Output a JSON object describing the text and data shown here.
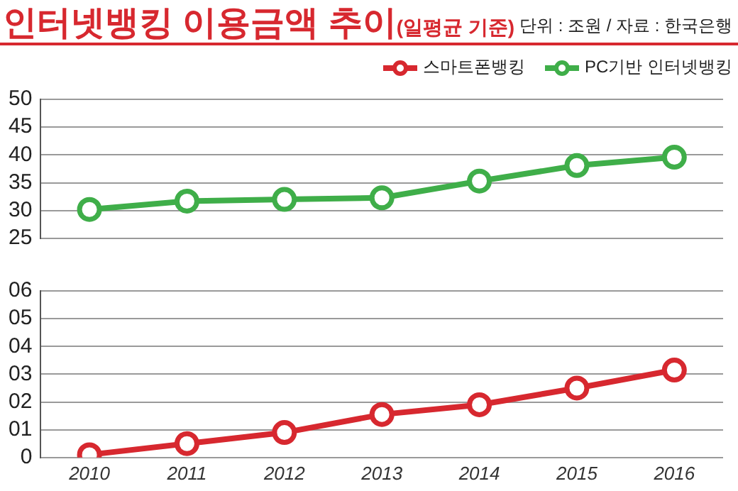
{
  "chart_data": [
    {
      "type": "line",
      "title": "인터넷뱅킹 이용금액 추이",
      "subtitle": "(일평균 기준)",
      "annotations": [
        "단위 : 조원 / 자료 : 한국은행"
      ],
      "categories": [
        "2010",
        "2011",
        "2012",
        "2013",
        "2014",
        "2015",
        "2016"
      ],
      "series": [
        {
          "name": "PC기반 인터넷뱅킹",
          "color": "#3fae49",
          "values": [
            30.2,
            31.7,
            32.0,
            32.3,
            35.3,
            38.1,
            39.6
          ]
        }
      ],
      "ylim": [
        25,
        50
      ],
      "yticks": [
        25,
        30,
        35,
        40,
        45,
        50
      ],
      "grid": "y",
      "legend": "top right",
      "marker": "circle",
      "tick_labels": "y"
    },
    {
      "type": "line",
      "categories": [
        "2010",
        "2011",
        "2012",
        "2013",
        "2014",
        "2015",
        "2016"
      ],
      "series": [
        {
          "name": "스마트폰뱅킹",
          "color": "#d7282f",
          "values": [
            0.1,
            0.5,
            0.9,
            1.55,
            1.9,
            2.5,
            3.15
          ]
        }
      ],
      "ylim": [
        0,
        6
      ],
      "yticks": [
        0,
        {
          "value": 1,
          "label": "01"
        },
        {
          "value": 2,
          "label": "02"
        },
        {
          "value": 3,
          "label": "03"
        },
        {
          "value": 4,
          "label": "04"
        },
        {
          "value": 5,
          "label": "05"
        },
        {
          "value": 6,
          "label": "06"
        }
      ],
      "grid": "y",
      "legend": "top right",
      "marker": "circle"
    }
  ]
}
